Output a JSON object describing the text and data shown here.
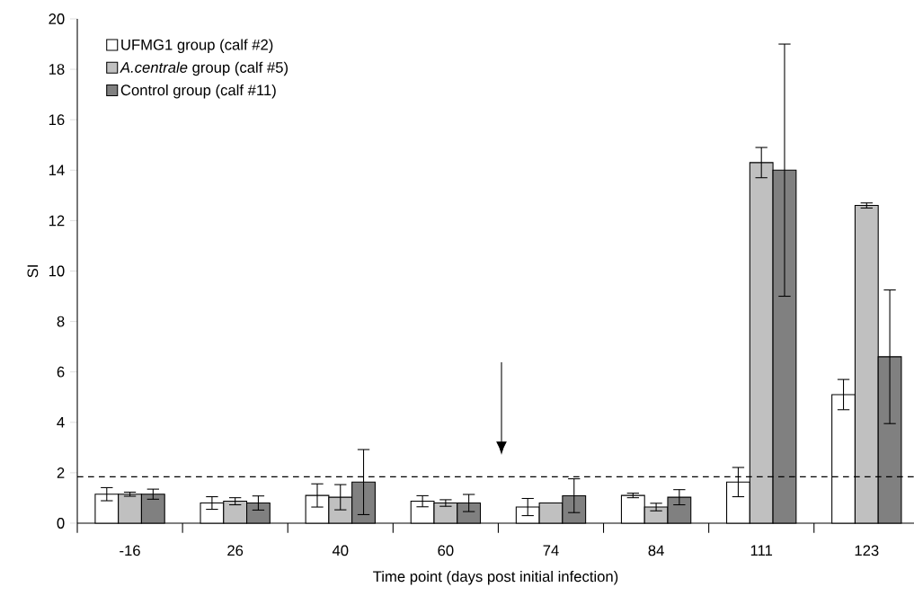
{
  "chart_data": {
    "type": "bar",
    "xlabel": "Time point (days post initial infection)",
    "ylabel": "SI",
    "categories": [
      "-16",
      "26",
      "40",
      "60",
      "74",
      "84",
      "111",
      "123"
    ],
    "series": [
      {
        "name": "UFMG1 group (calf #2)",
        "color": "#ffffff",
        "values": [
          1.15,
          0.8,
          1.1,
          0.87,
          0.64,
          1.1,
          1.63,
          5.1
        ],
        "errors": [
          0.26,
          0.25,
          0.46,
          0.22,
          0.34,
          0.09,
          0.58,
          0.6
        ]
      },
      {
        "name": "*A.centrale* group (calf #5)",
        "color": "#c0c0c0",
        "values": [
          1.15,
          0.87,
          1.03,
          0.8,
          0.8,
          0.64,
          14.3,
          12.6
        ],
        "errors": [
          0.08,
          0.14,
          0.5,
          0.13,
          null,
          0.15,
          0.6,
          0.1
        ]
      },
      {
        "name": "Control group (calf #11)",
        "color": "#808080",
        "values": [
          1.15,
          0.8,
          1.63,
          0.8,
          1.09,
          1.03,
          14.0,
          6.6
        ],
        "errors": [
          0.2,
          0.28,
          1.29,
          0.34,
          0.67,
          0.3,
          5.0,
          2.65
        ]
      }
    ],
    "ylim": [
      0,
      20
    ],
    "yticks": [
      0,
      2,
      4,
      6,
      8,
      10,
      12,
      14,
      16,
      18,
      20
    ],
    "legend": "top left",
    "ref_lines": [
      {
        "axis": "y",
        "value": 1.84,
        "color": "#000000",
        "line_style": "dashed"
      }
    ]
  }
}
